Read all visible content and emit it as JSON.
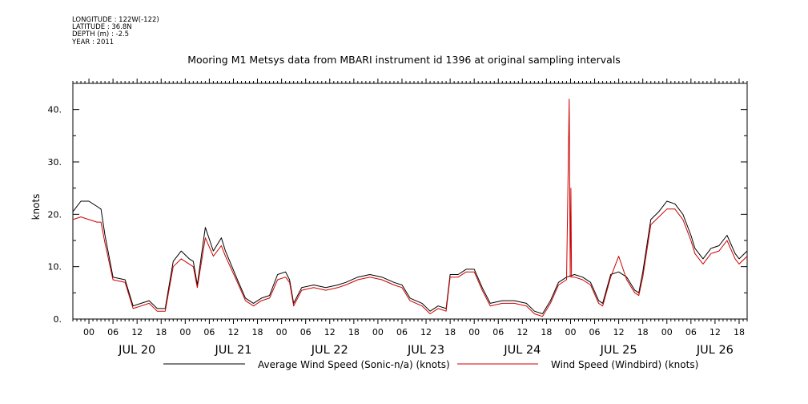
{
  "header": {
    "meta_lines": [
      "LONGITUDE : 122W(-122)",
      "LATITUDE : 36.8N",
      "DEPTH (m) : -2.5",
      "YEAR : 2011"
    ],
    "title": "Mooring M1 Metsys data from MBARI instrument id 1396 at original sampling intervals"
  },
  "chart_data": {
    "type": "line",
    "title": "Mooring M1 Metsys data from MBARI instrument id 1396 at original sampling intervals",
    "xlabel": "",
    "ylabel": "knots",
    "x_range": [
      "2011-07-19 20:00",
      "2011-07-26 20:00"
    ],
    "ylim": [
      0,
      45
    ],
    "y_ticks": [
      0,
      10,
      20,
      30,
      40
    ],
    "y_tick_labels": [
      "0.",
      "10.",
      "20.",
      "30.",
      "40."
    ],
    "x_tick_hours": [
      "00",
      "06",
      "12",
      "18",
      "00",
      "06",
      "12",
      "18",
      "00",
      "06",
      "12",
      "18",
      "00",
      "06",
      "12",
      "18",
      "00",
      "06",
      "12",
      "18",
      "00",
      "06",
      "12",
      "18",
      "00",
      "06",
      "12",
      "18"
    ],
    "day_labels": [
      "JUL 20",
      "JUL 21",
      "JUL 22",
      "JUL 23",
      "JUL 24",
      "JUL 25",
      "JUL 26"
    ],
    "grid": false,
    "legend_position": "bottom",
    "series": [
      {
        "name": "Average Wind Speed (Sonic-n/a) (knots)",
        "color": "#000000",
        "points": [
          [
            "2011-07-19 20:00",
            20.5
          ],
          [
            "2011-07-19 22:00",
            22.5
          ],
          [
            "2011-07-20 00:00",
            22.5
          ],
          [
            "2011-07-20 02:00",
            21.5
          ],
          [
            "2011-07-20 03:00",
            21.0
          ],
          [
            "2011-07-20 04:00",
            16.0
          ],
          [
            "2011-07-20 06:00",
            8.0
          ],
          [
            "2011-07-20 09:00",
            7.5
          ],
          [
            "2011-07-20 11:00",
            2.5
          ],
          [
            "2011-07-20 13:00",
            3.0
          ],
          [
            "2011-07-20 15:00",
            3.5
          ],
          [
            "2011-07-20 17:00",
            2.0
          ],
          [
            "2011-07-20 19:00",
            2.0
          ],
          [
            "2011-07-20 21:00",
            11.0
          ],
          [
            "2011-07-20 23:00",
            13.0
          ],
          [
            "2011-07-21 01:00",
            11.5
          ],
          [
            "2011-07-21 02:00",
            11.0
          ],
          [
            "2011-07-21 03:00",
            6.5
          ],
          [
            "2011-07-21 05:00",
            17.5
          ],
          [
            "2011-07-21 07:00",
            13.0
          ],
          [
            "2011-07-21 09:00",
            15.5
          ],
          [
            "2011-07-21 10:00",
            13.0
          ],
          [
            "2011-07-21 13:00",
            7.5
          ],
          [
            "2011-07-21 15:00",
            4.0
          ],
          [
            "2011-07-21 17:00",
            3.0
          ],
          [
            "2011-07-21 19:00",
            4.0
          ],
          [
            "2011-07-21 21:00",
            4.5
          ],
          [
            "2011-07-21 23:00",
            8.5
          ],
          [
            "2011-07-22 01:00",
            9.0
          ],
          [
            "2011-07-22 02:00",
            7.5
          ],
          [
            "2011-07-22 03:00",
            3.0
          ],
          [
            "2011-07-22 05:00",
            6.0
          ],
          [
            "2011-07-22 08:00",
            6.5
          ],
          [
            "2011-07-22 11:00",
            6.0
          ],
          [
            "2011-07-22 14:00",
            6.5
          ],
          [
            "2011-07-22 16:00",
            7.0
          ],
          [
            "2011-07-22 19:00",
            8.0
          ],
          [
            "2011-07-22 22:00",
            8.5
          ],
          [
            "2011-07-23 01:00",
            8.0
          ],
          [
            "2011-07-23 04:00",
            7.0
          ],
          [
            "2011-07-23 06:00",
            6.5
          ],
          [
            "2011-07-23 08:00",
            4.0
          ],
          [
            "2011-07-23 11:00",
            3.0
          ],
          [
            "2011-07-23 13:00",
            1.5
          ],
          [
            "2011-07-23 15:00",
            2.5
          ],
          [
            "2011-07-23 17:00",
            2.0
          ],
          [
            "2011-07-23 18:00",
            8.5
          ],
          [
            "2011-07-23 20:00",
            8.5
          ],
          [
            "2011-07-23 22:00",
            9.5
          ],
          [
            "2011-07-24 00:00",
            9.5
          ],
          [
            "2011-07-24 02:00",
            6.0
          ],
          [
            "2011-07-24 04:00",
            3.0
          ],
          [
            "2011-07-24 07:00",
            3.5
          ],
          [
            "2011-07-24 10:00",
            3.5
          ],
          [
            "2011-07-24 13:00",
            3.0
          ],
          [
            "2011-07-24 15:00",
            1.5
          ],
          [
            "2011-07-24 17:00",
            1.0
          ],
          [
            "2011-07-24 19:00",
            3.5
          ],
          [
            "2011-07-24 21:00",
            7.0
          ],
          [
            "2011-07-24 23:00",
            8.0
          ],
          [
            "2011-07-25 01:00",
            8.5
          ],
          [
            "2011-07-25 03:00",
            8.0
          ],
          [
            "2011-07-25 05:00",
            7.0
          ],
          [
            "2011-07-25 07:00",
            3.5
          ],
          [
            "2011-07-25 08:00",
            3.0
          ],
          [
            "2011-07-25 10:00",
            8.5
          ],
          [
            "2011-07-25 12:00",
            9.0
          ],
          [
            "2011-07-25 14:00",
            8.0
          ],
          [
            "2011-07-25 16:00",
            5.5
          ],
          [
            "2011-07-25 17:00",
            5.0
          ],
          [
            "2011-07-25 18:00",
            9.0
          ],
          [
            "2011-07-25 20:00",
            19.0
          ],
          [
            "2011-07-25 22:00",
            20.5
          ],
          [
            "2011-07-26 00:00",
            22.5
          ],
          [
            "2011-07-26 02:00",
            22.0
          ],
          [
            "2011-07-26 04:00",
            20.0
          ],
          [
            "2011-07-26 06:00",
            16.0
          ],
          [
            "2011-07-26 07:00",
            13.5
          ],
          [
            "2011-07-26 09:00",
            11.5
          ],
          [
            "2011-07-26 11:00",
            13.5
          ],
          [
            "2011-07-26 13:00",
            14.0
          ],
          [
            "2011-07-26 15:00",
            16.0
          ],
          [
            "2011-07-26 17:00",
            12.5
          ],
          [
            "2011-07-26 18:00",
            11.5
          ],
          [
            "2011-07-26 20:00",
            13.0
          ]
        ]
      },
      {
        "name": "Wind Speed (Windbird) (knots)",
        "color": "#cc0000",
        "points": [
          [
            "2011-07-19 20:00",
            19.0
          ],
          [
            "2011-07-19 22:00",
            19.5
          ],
          [
            "2011-07-20 00:00",
            19.0
          ],
          [
            "2011-07-20 02:00",
            18.5
          ],
          [
            "2011-07-20 03:00",
            18.5
          ],
          [
            "2011-07-20 04:00",
            14.5
          ],
          [
            "2011-07-20 06:00",
            7.5
          ],
          [
            "2011-07-20 09:00",
            7.0
          ],
          [
            "2011-07-20 11:00",
            2.0
          ],
          [
            "2011-07-20 13:00",
            2.5
          ],
          [
            "2011-07-20 15:00",
            3.0
          ],
          [
            "2011-07-20 17:00",
            1.5
          ],
          [
            "2011-07-20 19:00",
            1.5
          ],
          [
            "2011-07-20 21:00",
            10.0
          ],
          [
            "2011-07-20 23:00",
            11.5
          ],
          [
            "2011-07-21 01:00",
            10.5
          ],
          [
            "2011-07-21 02:00",
            10.0
          ],
          [
            "2011-07-21 03:00",
            6.0
          ],
          [
            "2011-07-21 05:00",
            15.5
          ],
          [
            "2011-07-21 07:00",
            12.0
          ],
          [
            "2011-07-21 09:00",
            14.0
          ],
          [
            "2011-07-21 10:00",
            12.0
          ],
          [
            "2011-07-21 13:00",
            7.0
          ],
          [
            "2011-07-21 15:00",
            3.5
          ],
          [
            "2011-07-21 17:00",
            2.5
          ],
          [
            "2011-07-21 19:00",
            3.5
          ],
          [
            "2011-07-21 21:00",
            4.0
          ],
          [
            "2011-07-21 23:00",
            7.5
          ],
          [
            "2011-07-22 01:00",
            8.0
          ],
          [
            "2011-07-22 02:00",
            7.0
          ],
          [
            "2011-07-22 03:00",
            2.5
          ],
          [
            "2011-07-22 05:00",
            5.5
          ],
          [
            "2011-07-22 08:00",
            6.0
          ],
          [
            "2011-07-22 11:00",
            5.5
          ],
          [
            "2011-07-22 14:00",
            6.0
          ],
          [
            "2011-07-22 16:00",
            6.5
          ],
          [
            "2011-07-22 19:00",
            7.5
          ],
          [
            "2011-07-22 22:00",
            8.0
          ],
          [
            "2011-07-23 01:00",
            7.5
          ],
          [
            "2011-07-23 04:00",
            6.5
          ],
          [
            "2011-07-23 06:00",
            6.0
          ],
          [
            "2011-07-23 08:00",
            3.5
          ],
          [
            "2011-07-23 11:00",
            2.5
          ],
          [
            "2011-07-23 13:00",
            1.0
          ],
          [
            "2011-07-23 15:00",
            2.0
          ],
          [
            "2011-07-23 17:00",
            1.5
          ],
          [
            "2011-07-23 18:00",
            8.0
          ],
          [
            "2011-07-23 20:00",
            8.0
          ],
          [
            "2011-07-23 22:00",
            9.0
          ],
          [
            "2011-07-24 00:00",
            9.0
          ],
          [
            "2011-07-24 02:00",
            5.5
          ],
          [
            "2011-07-24 04:00",
            2.5
          ],
          [
            "2011-07-24 07:00",
            3.0
          ],
          [
            "2011-07-24 10:00",
            3.0
          ],
          [
            "2011-07-24 13:00",
            2.5
          ],
          [
            "2011-07-24 15:00",
            1.0
          ],
          [
            "2011-07-24 17:00",
            0.5
          ],
          [
            "2011-07-24 19:00",
            3.0
          ],
          [
            "2011-07-24 21:00",
            6.5
          ],
          [
            "2011-07-24 23:00",
            7.5
          ],
          [
            "2011-07-24 23:40",
            42.0
          ],
          [
            "2011-07-24 23:55",
            8.0
          ],
          [
            "2011-07-25 00:05",
            25.0
          ],
          [
            "2011-07-25 00:15",
            8.0
          ],
          [
            "2011-07-25 01:00",
            8.0
          ],
          [
            "2011-07-25 03:00",
            7.5
          ],
          [
            "2011-07-25 05:00",
            6.5
          ],
          [
            "2011-07-25 07:00",
            3.0
          ],
          [
            "2011-07-25 08:00",
            2.5
          ],
          [
            "2011-07-25 10:00",
            8.0
          ],
          [
            "2011-07-25 12:00",
            12.0
          ],
          [
            "2011-07-25 14:00",
            7.5
          ],
          [
            "2011-07-25 16:00",
            5.0
          ],
          [
            "2011-07-25 17:00",
            4.5
          ],
          [
            "2011-07-25 18:00",
            8.0
          ],
          [
            "2011-07-25 20:00",
            18.0
          ],
          [
            "2011-07-25 22:00",
            19.5
          ],
          [
            "2011-07-26 00:00",
            21.0
          ],
          [
            "2011-07-26 02:00",
            21.0
          ],
          [
            "2011-07-26 04:00",
            19.0
          ],
          [
            "2011-07-26 06:00",
            15.0
          ],
          [
            "2011-07-26 07:00",
            12.5
          ],
          [
            "2011-07-26 09:00",
            10.5
          ],
          [
            "2011-07-26 11:00",
            12.5
          ],
          [
            "2011-07-26 13:00",
            13.0
          ],
          [
            "2011-07-26 15:00",
            15.0
          ],
          [
            "2011-07-26 17:00",
            11.5
          ],
          [
            "2011-07-26 18:00",
            10.5
          ],
          [
            "2011-07-26 20:00",
            12.0
          ]
        ]
      }
    ]
  }
}
